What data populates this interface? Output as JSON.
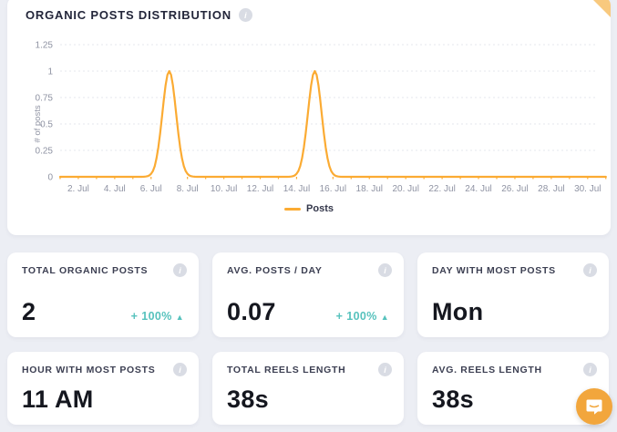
{
  "chart_card": {
    "title": "ORGANIC POSTS DISTRIBUTION",
    "corner_fold_color": "#F8C97E"
  },
  "chart_data": {
    "type": "line",
    "title": "ORGANIC POSTS DISTRIBUTION",
    "ylabel": "# of posts",
    "xlabel": "",
    "x_days": [
      1,
      2,
      3,
      4,
      5,
      6,
      7,
      8,
      9,
      10,
      11,
      12,
      13,
      14,
      15,
      16,
      17,
      18,
      19,
      20,
      21,
      22,
      23,
      24,
      25,
      26,
      27,
      28,
      29,
      30,
      31
    ],
    "series": [
      {
        "name": "Posts",
        "color": "#FBAB33",
        "values": [
          0,
          0,
          0,
          0,
          0,
          0,
          1,
          0,
          0,
          0,
          0,
          0,
          0,
          0,
          1,
          0,
          0,
          0,
          0,
          0,
          0,
          0,
          0,
          0,
          0,
          0,
          0,
          0,
          0,
          0,
          0
        ]
      }
    ],
    "x_tick_days": [
      2,
      4,
      6,
      8,
      10,
      12,
      14,
      16,
      18,
      20,
      22,
      24,
      26,
      28,
      30
    ],
    "x_tick_labels": [
      "2. Jul",
      "4. Jul",
      "6. Jul",
      "8. Jul",
      "10. Jul",
      "12. Jul",
      "14. Jul",
      "16. Jul",
      "18. Jul",
      "20. Jul",
      "22. Jul",
      "24. Jul",
      "26. Jul",
      "28. Jul",
      "30. Jul"
    ],
    "y_ticks": [
      "0",
      "0.25",
      "0.5",
      "0.75",
      "1",
      "1.25"
    ],
    "y_tick_values": [
      0,
      0.25,
      0.5,
      0.75,
      1,
      1.25
    ],
    "ylim": [
      0,
      1.25
    ],
    "grid": "horizontal-dotted",
    "legend_position": "bottom",
    "legend": [
      "Posts"
    ],
    "smoothing": "bell"
  },
  "stat_cards": [
    {
      "title": "TOTAL ORGANIC POSTS",
      "value": "2",
      "change": "+ 100%",
      "trend": "up"
    },
    {
      "title": "AVG. POSTS / DAY",
      "value": "0.07",
      "change": "+ 100%",
      "trend": "up"
    },
    {
      "title": "DAY WITH MOST POSTS",
      "value": "Mon",
      "change": "",
      "trend": ""
    },
    {
      "title": "HOUR WITH MOST POSTS",
      "value": "11 AM",
      "change": "",
      "trend": ""
    },
    {
      "title": "TOTAL REELS LENGTH",
      "value": "38s",
      "change": "",
      "trend": ""
    },
    {
      "title": "AVG. REELS LENGTH",
      "value": "38s",
      "change": "",
      "trend": ""
    }
  ],
  "colors": {
    "accent_orange": "#FBAB33",
    "positive_teal": "#57C2BD",
    "axis_text": "#8F93A3",
    "grid_line": "#E5E7EE",
    "info_icon_bg": "#D9DCE4",
    "page_bg": "#ECEEF4",
    "chat_bg": "#F2A63C"
  },
  "info_icon_glyph": "i",
  "up_arrow_glyph": "▲",
  "chat_widget": {
    "icon": "chat-bubble-smile-icon"
  }
}
